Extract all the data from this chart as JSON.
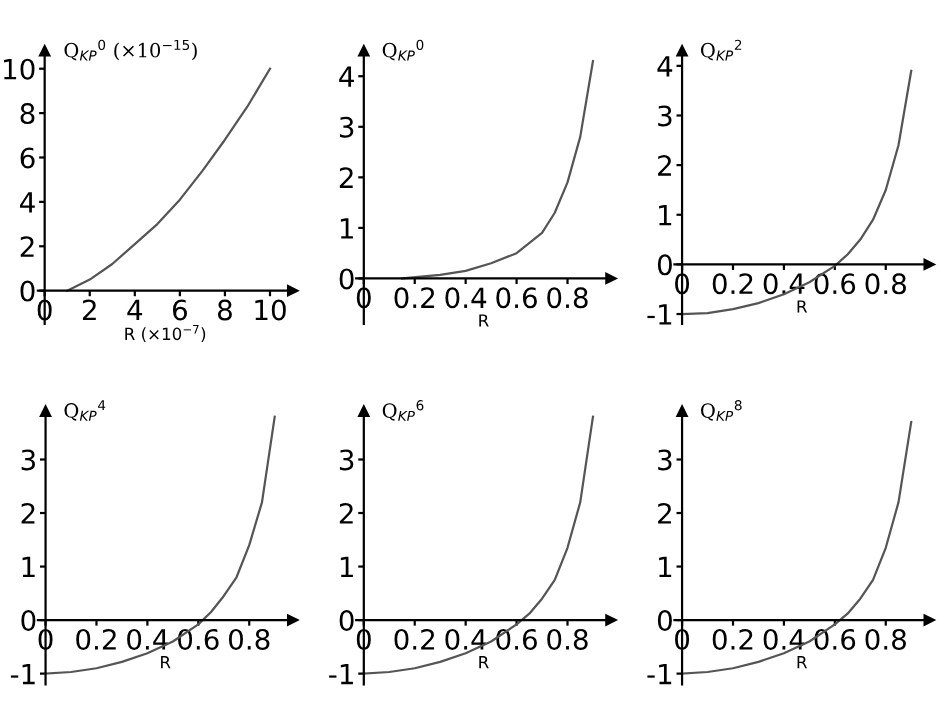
{
  "chart_data": [
    {
      "type": "line",
      "ylabel": "Q$_{KP}$$^{0}$ (×10$^{−15}$)",
      "xlabel": "R (×10$^{−7}$)",
      "xlim": [
        -0.3,
        11
      ],
      "ylim": [
        -1.5,
        10.8
      ],
      "xticks": [
        0,
        2,
        4,
        6,
        8,
        10
      ],
      "yticks": [
        0,
        2,
        4,
        6,
        8,
        10
      ],
      "grid": false,
      "series": [
        {
          "color": "#555555",
          "x": [
            1,
            2,
            3,
            4,
            5,
            6,
            7,
            8,
            9,
            10
          ],
          "values": [
            0,
            0.5,
            1.2,
            2.1,
            3.0,
            4.1,
            5.4,
            6.8,
            8.3,
            10
          ]
        }
      ]
    },
    {
      "type": "line",
      "ylabel": "Q$_{KP}$$^{0}$",
      "xlabel": "R",
      "xlim": [
        -0.03,
        0.97
      ],
      "ylim": [
        -0.9,
        4.5
      ],
      "xticks": [
        0,
        0.2,
        0.4,
        0.6,
        0.8
      ],
      "yticks": [
        0,
        1,
        2,
        3,
        4
      ],
      "grid": false,
      "series": [
        {
          "color": "#555555",
          "x": [
            0.15,
            0.3,
            0.4,
            0.5,
            0.6,
            0.7,
            0.75,
            0.8,
            0.85,
            0.9
          ],
          "values": [
            0,
            0.07,
            0.15,
            0.3,
            0.5,
            0.9,
            1.3,
            1.9,
            2.8,
            4.3
          ]
        }
      ]
    },
    {
      "type": "line",
      "ylabel": "Q$_{KP}$$^{2}$",
      "xlabel": "R",
      "xlim": [
        -0.03,
        0.97
      ],
      "ylim": [
        -1.2,
        4.3
      ],
      "xticks": [
        0,
        0.2,
        0.4,
        0.6,
        0.8
      ],
      "yticks": [
        -1,
        0,
        1,
        2,
        3,
        4
      ],
      "grid": false,
      "series": [
        {
          "color": "#555555",
          "x": [
            0,
            0.1,
            0.2,
            0.3,
            0.4,
            0.5,
            0.6,
            0.65,
            0.7,
            0.75,
            0.8,
            0.85,
            0.9
          ],
          "values": [
            -1,
            -0.98,
            -0.9,
            -0.78,
            -0.6,
            -0.36,
            -0.03,
            0.2,
            0.5,
            0.9,
            1.5,
            2.4,
            3.9
          ]
        }
      ]
    },
    {
      "type": "line",
      "ylabel": "Q$_{KP}$$^{4}$",
      "xlabel": "R",
      "xlim": [
        -0.03,
        0.97
      ],
      "ylim": [
        -1.2,
        3.9
      ],
      "xticks": [
        0,
        0.2,
        0.4,
        0.6,
        0.8
      ],
      "yticks": [
        -1,
        0,
        1,
        2,
        3
      ],
      "grid": false,
      "series": [
        {
          "color": "#555555",
          "x": [
            0,
            0.1,
            0.2,
            0.3,
            0.4,
            0.5,
            0.6,
            0.65,
            0.7,
            0.75,
            0.8,
            0.85,
            0.9
          ],
          "values": [
            -1,
            -0.97,
            -0.9,
            -0.78,
            -0.62,
            -0.4,
            -0.08,
            0.15,
            0.45,
            0.8,
            1.4,
            2.2,
            3.8
          ]
        }
      ]
    },
    {
      "type": "line",
      "ylabel": "Q$_{KP}$$^{6}$",
      "xlabel": "R",
      "xlim": [
        -0.03,
        0.97
      ],
      "ylim": [
        -1.2,
        3.9
      ],
      "xticks": [
        0,
        0.2,
        0.4,
        0.6,
        0.8
      ],
      "yticks": [
        -1,
        0,
        1,
        2,
        3
      ],
      "grid": false,
      "series": [
        {
          "color": "#555555",
          "x": [
            0,
            0.1,
            0.2,
            0.3,
            0.4,
            0.5,
            0.6,
            0.65,
            0.7,
            0.75,
            0.8,
            0.85,
            0.9
          ],
          "values": [
            -1,
            -0.97,
            -0.9,
            -0.78,
            -0.62,
            -0.4,
            -0.08,
            0.12,
            0.4,
            0.75,
            1.35,
            2.2,
            3.8
          ]
        }
      ]
    },
    {
      "type": "line",
      "ylabel": "Q$_{KP}$$^{8}$",
      "xlabel": "R",
      "xlim": [
        -0.03,
        0.97
      ],
      "ylim": [
        -1.2,
        3.9
      ],
      "xticks": [
        0,
        0.2,
        0.4,
        0.6,
        0.8
      ],
      "yticks": [
        -1,
        0,
        1,
        2,
        3
      ],
      "grid": false,
      "series": [
        {
          "color": "#555555",
          "x": [
            0,
            0.1,
            0.2,
            0.3,
            0.4,
            0.5,
            0.6,
            0.65,
            0.7,
            0.75,
            0.8,
            0.85,
            0.9
          ],
          "values": [
            -1,
            -0.97,
            -0.9,
            -0.78,
            -0.62,
            -0.4,
            -0.08,
            0.12,
            0.4,
            0.75,
            1.35,
            2.2,
            3.7
          ]
        }
      ]
    }
  ]
}
